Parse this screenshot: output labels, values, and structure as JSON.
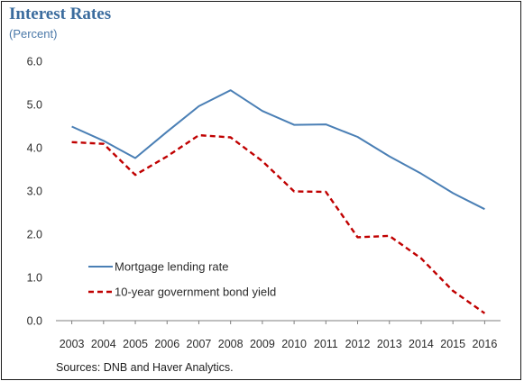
{
  "header": {
    "title": "Interest Rates",
    "subtitle": "(Percent)"
  },
  "footer": {
    "source": "Sources: DNB and Haver Analytics."
  },
  "chart_data": {
    "type": "line",
    "title": "Interest Rates",
    "subtitle": "(Percent)",
    "xlabel": "",
    "ylabel": "",
    "x": [
      "2003",
      "2004",
      "2005",
      "2006",
      "2007",
      "2008",
      "2009",
      "2010",
      "2011",
      "2012",
      "2013",
      "2014",
      "2015",
      "2016"
    ],
    "ylim": [
      0,
      6
    ],
    "yticks": [
      "0.0",
      "1.0",
      "2.0",
      "3.0",
      "4.0",
      "5.0",
      "6.0"
    ],
    "grid": false,
    "legend_position": "bottom-left",
    "series": [
      {
        "name": "Mortgage lending rate",
        "color": "#4a7fb5",
        "style": "solid",
        "values": [
          4.49,
          4.16,
          3.76,
          4.37,
          4.96,
          5.33,
          4.85,
          4.53,
          4.54,
          4.25,
          3.8,
          3.4,
          2.95,
          2.58
        ]
      },
      {
        "name": "10-year government bond yield",
        "color": "#c00000",
        "style": "dashed",
        "values": [
          4.13,
          4.09,
          3.37,
          3.8,
          4.29,
          4.24,
          3.69,
          2.99,
          2.98,
          1.93,
          1.96,
          1.44,
          0.69,
          0.17
        ]
      }
    ]
  }
}
